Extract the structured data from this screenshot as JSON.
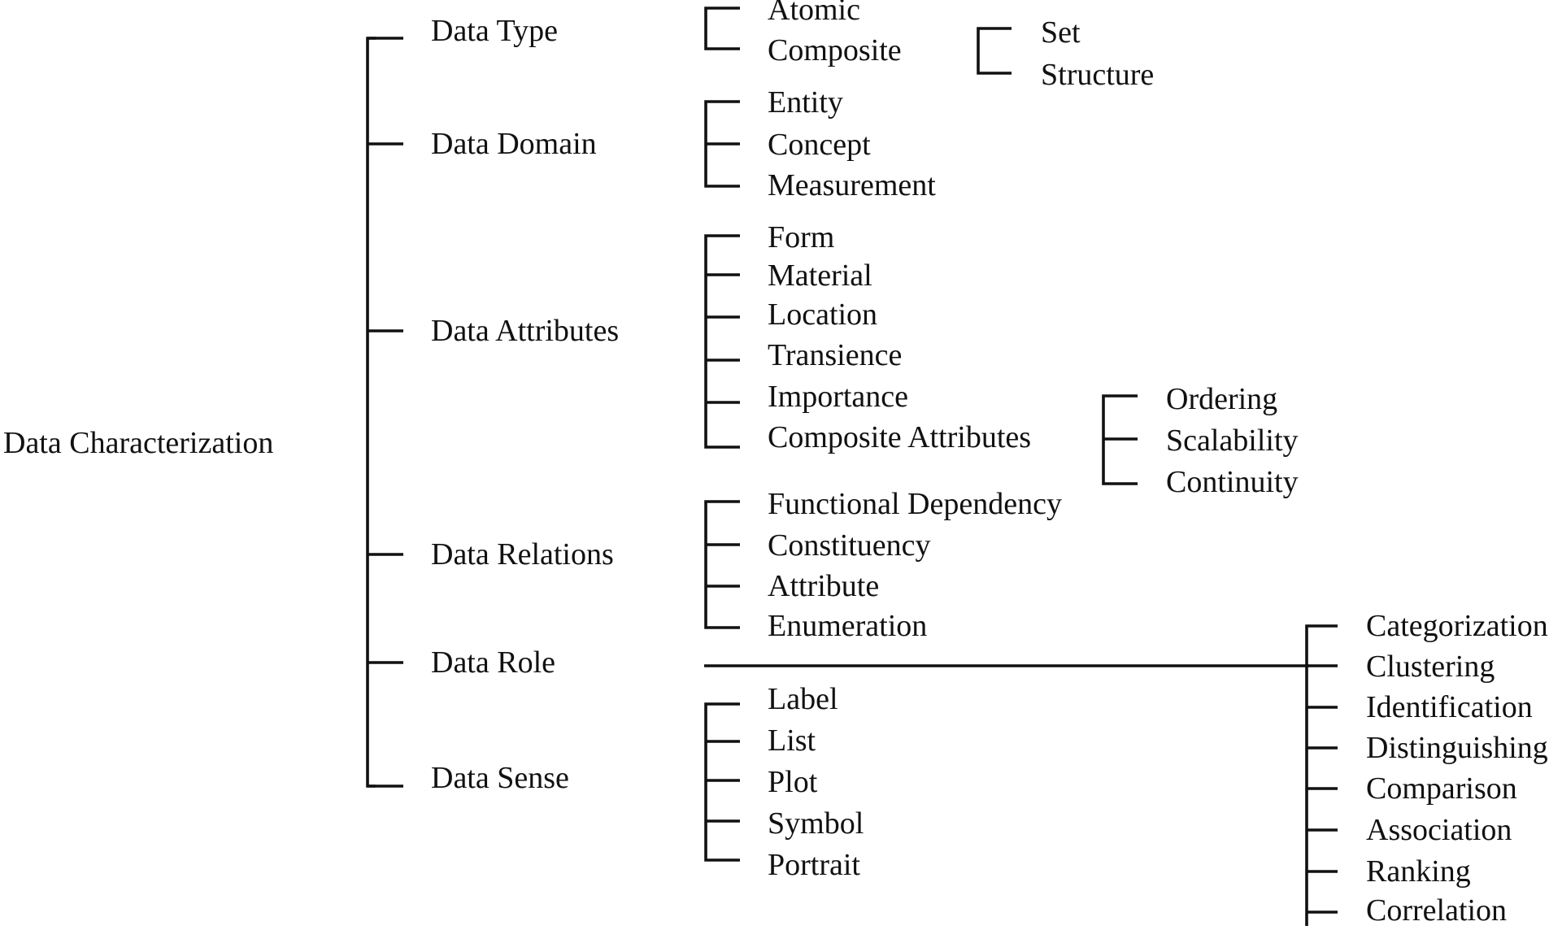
{
  "diagram": {
    "root": "Data Characterization",
    "categories": {
      "data_type": {
        "label": "Data Type",
        "items": {
          "atomic": "Atomic",
          "composite": "Composite"
        },
        "composite_children": [
          "Set",
          "Structure"
        ]
      },
      "data_domain": {
        "label": "Data Domain",
        "items": [
          "Entity",
          "Concept",
          "Measurement"
        ]
      },
      "data_attributes": {
        "label": "Data Attributes",
        "items": [
          "Form",
          "Material",
          "Location",
          "Transience",
          "Importance",
          "Composite Attributes"
        ],
        "composite_attributes_children": [
          "Ordering",
          "Scalability",
          "Continuity"
        ]
      },
      "data_relations": {
        "label": "Data Relations",
        "items": [
          "Functional Dependency",
          "Constituency",
          "Attribute",
          "Enumeration"
        ]
      },
      "data_role": {
        "label": "Data Role",
        "items": [
          "Categorization",
          "Clustering",
          "Identification",
          "Distinguishing",
          "Comparison",
          "Association",
          "Ranking",
          "Correlation"
        ]
      },
      "data_sense": {
        "label": "Data Sense",
        "items": [
          "Label",
          "List",
          "Plot",
          "Symbol",
          "Portrait"
        ]
      }
    }
  }
}
